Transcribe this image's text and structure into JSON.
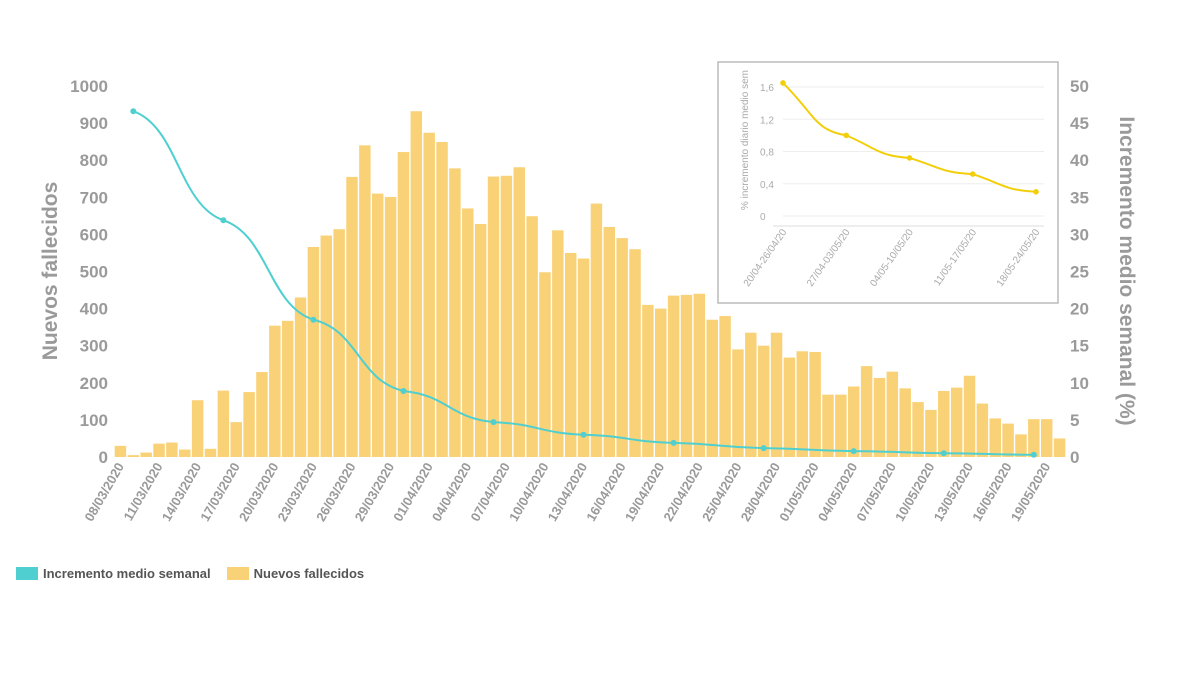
{
  "chart_data": [
    {
      "type": "bar+line",
      "title": "",
      "ylabel": "Nuevos fallecidos",
      "y2label": "Incremento medio semanal (%)",
      "ylim": [
        0,
        1000
      ],
      "y2lim": [
        0,
        50
      ],
      "yticks": [
        0,
        100,
        200,
        300,
        400,
        500,
        600,
        700,
        800,
        900,
        1000
      ],
      "y2ticks": [
        0,
        5,
        10,
        15,
        20,
        25,
        30,
        35,
        40,
        45,
        50
      ],
      "start_date": "08/03/2020",
      "xtick_labels": [
        "08/03/2020",
        "11/03/2020",
        "14/03/2020",
        "17/03/2020",
        "20/03/2020",
        "23/03/2020",
        "26/03/2020",
        "29/03/2020",
        "01/04/2020",
        "04/04/2020",
        "07/04/2020",
        "10/04/2020",
        "13/04/2020",
        "16/04/2020",
        "19/04/2020",
        "22/04/2020",
        "25/04/2020",
        "28/04/2020",
        "01/05/2020",
        "04/05/2020",
        "07/05/2020",
        "10/05/2020",
        "13/05/2020",
        "16/05/2020",
        "19/05/2020"
      ],
      "xtick_every_days": 3,
      "series": [
        {
          "name": "Nuevos fallecidos",
          "type": "bar",
          "axis": "left",
          "color": "#f9d277",
          "values": [
            30,
            5,
            12,
            36,
            39,
            20,
            153,
            22,
            179,
            94,
            175,
            229,
            354,
            367,
            430,
            566,
            597,
            614,
            755,
            840,
            710,
            701,
            822,
            932,
            874,
            849,
            778,
            670,
            628,
            756,
            758,
            781,
            649,
            498,
            611,
            550,
            535,
            683,
            620,
            590,
            560,
            410,
            400,
            435,
            437,
            440,
            370,
            380,
            290,
            335,
            300,
            335,
            268,
            285,
            283,
            168,
            168,
            190,
            245,
            213,
            230,
            185,
            148,
            127,
            178,
            187,
            219,
            144,
            104,
            90,
            61,
            102,
            102,
            50
          ]
        },
        {
          "name": "Incremento medio semanal",
          "type": "line",
          "axis": "right",
          "color": "#4fcfd0",
          "day_index": [
            1,
            8,
            15,
            22,
            29,
            36,
            43,
            50,
            57,
            64,
            71
          ],
          "values": [
            46.6,
            31.9,
            18.5,
            8.9,
            4.7,
            3.0,
            1.9,
            1.2,
            0.8,
            0.5,
            0.3
          ]
        }
      ],
      "legend": "bottom-left"
    },
    {
      "type": "line",
      "title": "",
      "ylabel": "% incremento diario medio sem",
      "categories": [
        "20/04-26/04/20",
        "27/04-03/05/20",
        "04/05-10/05/20",
        "11/05-17/05/20",
        "18/05-24/05/20"
      ],
      "values": [
        1.65,
        1.0,
        0.72,
        0.52,
        0.3
      ],
      "ylim": [
        0,
        1.6
      ],
      "yticks": [
        "0",
        "0,4",
        "0,8",
        "1,2",
        "1,6"
      ],
      "color": "#f2cf0a",
      "grid": true
    }
  ],
  "legend": {
    "items": [
      {
        "label": "Incremento medio semanal",
        "color": "#4fcfd0"
      },
      {
        "label": "Nuevos fallecidos",
        "color": "#f9d277"
      }
    ]
  }
}
